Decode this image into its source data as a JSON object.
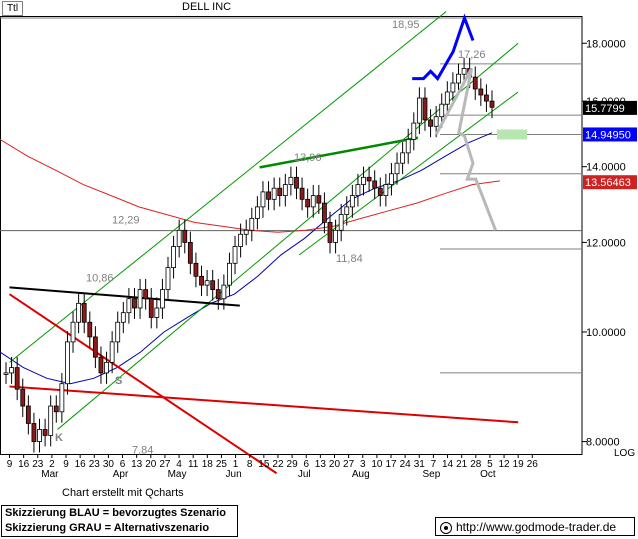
{
  "header": {
    "ticker": "Ttl",
    "title": "DELL INC"
  },
  "footer": {
    "credit": "Chart erstellt mit Qcharts",
    "legend_blue": "Skizzierung BLAU = bevorzugtes Szenario",
    "legend_gray": "Skizzierung GRAU = Alternativszenario",
    "website": "http://www.godmode-trader.de"
  },
  "colors": {
    "candle_up": "#ffffff",
    "candle_down": "#8b1a1a",
    "channel": "#009900",
    "ma_fast": "#0000aa",
    "ma_slow": "#dd2222",
    "blue_scenario": "#0000ff",
    "gray_scenario": "#b8b8b8",
    "price_tag": "#000000",
    "blue_tag": "#0000ff",
    "red_tag": "#cc2222",
    "support_zone": "#b8e6b0"
  },
  "chart_data": {
    "type": "candlestick",
    "scale": "log",
    "ylim": [
      7.8,
      19.3
    ],
    "yticks": [
      "8.0000",
      "10.0000",
      "12.0000",
      "14.0000",
      "16.0000",
      "18.0000"
    ],
    "axis_unit_label": "LOG",
    "x_ticks": [
      "9",
      "16",
      "23",
      "2",
      "9",
      "16",
      "23",
      "30",
      "6",
      "13",
      "20",
      "27",
      "4",
      "11",
      "18",
      "25",
      "1",
      "8",
      "15",
      "22",
      "29",
      "6",
      "13",
      "20",
      "27",
      "3",
      "10",
      "17",
      "24",
      "31",
      "7",
      "14",
      "21",
      "28",
      "5",
      "12",
      "19",
      "26"
    ],
    "month_labels": [
      {
        "label": "Mar",
        "at": 3
      },
      {
        "label": "Apr",
        "at": 8
      },
      {
        "label": "May",
        "at": 12
      },
      {
        "label": "Jun",
        "at": 16
      },
      {
        "label": "Jul",
        "at": 21
      },
      {
        "label": "Aug",
        "at": 25
      },
      {
        "label": "Sep",
        "at": 30
      },
      {
        "label": "Oct",
        "at": 34
      }
    ],
    "price_labels": [
      {
        "label": "18,95",
        "value": 18.95
      },
      {
        "label": "17,26",
        "value": 17.26
      },
      {
        "label": "13,96",
        "value": 13.96
      },
      {
        "label": "12,29",
        "value": 12.29
      },
      {
        "label": "11,84",
        "value": 11.84
      },
      {
        "label": "10,86",
        "value": 10.86
      },
      {
        "label": "7,84",
        "value": 7.84
      }
    ],
    "pattern_labels": [
      "S",
      "K"
    ],
    "horizontal_levels": [
      18.95,
      17.26,
      15.55,
      14.95,
      13.8,
      12.29,
      11.84,
      9.2
    ],
    "current_price": {
      "label": "15.7799",
      "value": 15.7799
    },
    "blue_level": {
      "label": "14.94950",
      "value": 14.9495
    },
    "red_level": {
      "label": "13.56463",
      "value": 13.56463
    },
    "closes": [
      9.2,
      9.3,
      8.9,
      8.6,
      8.3,
      8.0,
      8.2,
      8.1,
      8.6,
      8.5,
      9.0,
      9.8,
      10.2,
      10.6,
      10.2,
      9.9,
      9.5,
      9.2,
      9.4,
      9.8,
      10.2,
      10.4,
      10.7,
      10.5,
      10.9,
      10.7,
      10.3,
      10.5,
      10.9,
      11.4,
      11.9,
      12.3,
      12.0,
      11.5,
      11.2,
      11.0,
      11.1,
      10.9,
      10.7,
      11.0,
      11.5,
      11.9,
      12.2,
      12.3,
      12.6,
      12.9,
      13.3,
      13.1,
      13.4,
      13.2,
      13.5,
      13.7,
      13.4,
      13.1,
      12.9,
      13.2,
      13.0,
      12.5,
      12.0,
      12.3,
      12.7,
      12.9,
      13.2,
      13.5,
      13.7,
      13.6,
      13.4,
      13.2,
      13.5,
      13.8,
      14.1,
      14.4,
      14.8,
      15.3,
      16.1,
      15.4,
      15.2,
      15.5,
      15.9,
      16.3,
      16.6,
      16.9,
      17.1,
      16.8,
      16.4,
      16.2,
      16.0,
      15.8
    ],
    "ma_fast": [
      9.6,
      9.3,
      9.1,
      9.0,
      9.1,
      9.3,
      9.6,
      10.0,
      10.3,
      10.6,
      10.8,
      11.2,
      11.7,
      12.1,
      12.6,
      13.1,
      13.4,
      13.6,
      13.9,
      14.3,
      14.7,
      15.0
    ],
    "ma_slow": [
      14.8,
      14.3,
      13.9,
      13.5,
      13.2,
      12.9,
      12.7,
      12.5,
      12.4,
      12.3,
      12.25,
      12.3,
      12.4,
      12.6,
      12.8,
      13.0,
      13.25,
      13.5,
      13.6
    ],
    "channel_lines": [
      {
        "x1": 0.0,
        "y1": 9.4,
        "x2": 30.9,
        "y2": 19.2
      },
      {
        "x1": 3.4,
        "y1": 8.2,
        "x2": 36.0,
        "y2": 18.0
      },
      {
        "x1": 20.5,
        "y1": 11.7,
        "x2": 36.0,
        "y2": 16.3
      }
    ],
    "trend_lines": [
      {
        "kind": "black",
        "x1": 0.0,
        "y1": 10.95,
        "x2": 16.3,
        "y2": 10.55
      },
      {
        "kind": "green",
        "x1": 17.7,
        "y1": 13.98,
        "x2": 28.9,
        "y2": 14.85
      },
      {
        "kind": "red_steep",
        "x1": 0.0,
        "y1": 10.8,
        "x2": 18.9,
        "y2": 7.5
      },
      {
        "kind": "red_flat",
        "x1": 0.0,
        "y1": 8.95,
        "x2": 36.0,
        "y2": 8.32
      }
    ],
    "blue_scenario": [
      [
        28.5,
        16.75
      ],
      [
        29.3,
        16.75
      ],
      [
        29.8,
        17.0
      ],
      [
        30.3,
        16.75
      ],
      [
        31.4,
        17.7
      ],
      [
        32.2,
        18.95
      ],
      [
        32.8,
        18.1
      ]
    ],
    "gray_scenario": [
      [
        30.2,
        14.95
      ],
      [
        32.7,
        17.1
      ],
      [
        31.8,
        15.0
      ],
      [
        32.2,
        14.9
      ],
      [
        32.8,
        14.1
      ],
      [
        32.4,
        13.65
      ],
      [
        33.0,
        13.65
      ],
      [
        34.4,
        12.3
      ]
    ]
  }
}
